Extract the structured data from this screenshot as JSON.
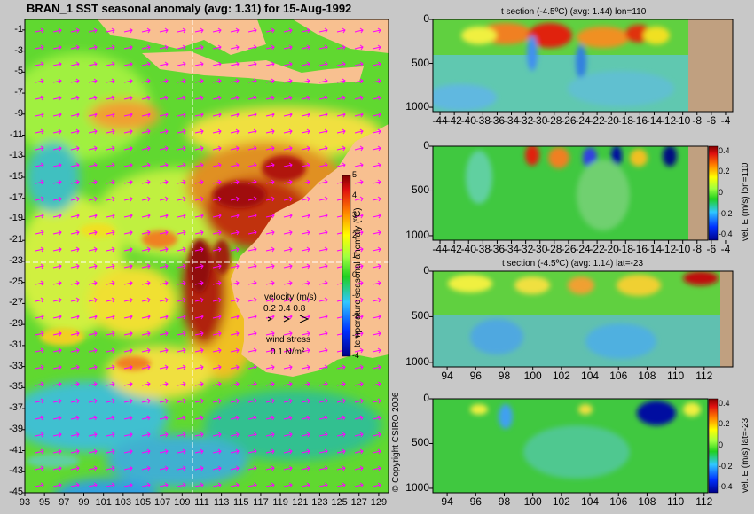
{
  "chart_data": [
    {
      "type": "heatmap",
      "title": "BRAN_1  SST seasonal anomaly (avg: 1.31) for 15-Aug-1992",
      "x_ticks": [
        "93",
        "95",
        "97",
        "99",
        "101",
        "103",
        "105",
        "107",
        "109",
        "111",
        "113",
        "115",
        "117",
        "119",
        "121",
        "123",
        "125",
        "127",
        "129"
      ],
      "y_ticks": [
        "-1",
        "-3",
        "-5",
        "-7",
        "-9",
        "-11",
        "-13",
        "-15",
        "-17",
        "-19",
        "-21",
        "-23",
        "-25",
        "-27",
        "-29",
        "-31",
        "-33",
        "-35",
        "-37",
        "-39",
        "-41",
        "-43",
        "-45"
      ],
      "xlim": [
        93,
        130
      ],
      "ylim": [
        -45,
        0
      ],
      "colorbar": {
        "label": "temperature seasonal anomaly (ºC)",
        "ticks": [
          "5",
          "4",
          "3",
          "2",
          "1",
          "0",
          "-1",
          "-2",
          "-3",
          "-4"
        ],
        "range": [
          -4,
          5
        ]
      },
      "annotations": {
        "velocity_label": "velocity (m/s)",
        "velocity_scale": "0.2 0.4 0.8",
        "wind_label": "wind stress",
        "wind_scale": "0.1 N/m²"
      },
      "crosshair": {
        "lon": 110,
        "lat": -23
      },
      "copyright": "© Copyright CSIRO 2006"
    },
    {
      "type": "heatmap",
      "title": "t section (-4.5ºC) (avg: 1.44) lon=110",
      "x_ticks": [
        "-44",
        "-42",
        "-40",
        "-38",
        "-36",
        "-34",
        "-32",
        "-30",
        "-28",
        "-26",
        "-24",
        "-22",
        "-20",
        "-18",
        "-16",
        "-14",
        "-12",
        "-10",
        "-8",
        "-6",
        "-4"
      ],
      "y_ticks": [
        "0",
        "500",
        "1000"
      ],
      "xlim": [
        -45,
        -3
      ],
      "ylim": [
        1050,
        0
      ]
    },
    {
      "type": "heatmap",
      "title": "",
      "x_ticks": [
        "-44",
        "-42",
        "-40",
        "-38",
        "-36",
        "-34",
        "-32",
        "-30",
        "-28",
        "-26",
        "-24",
        "-22",
        "-20",
        "-18",
        "-16",
        "-14",
        "-12",
        "-10",
        "-8",
        "-6",
        "-4"
      ],
      "y_ticks": [
        "0",
        "500",
        "1000"
      ],
      "xlim": [
        -45,
        -3
      ],
      "ylim": [
        1050,
        0
      ],
      "colorbar": {
        "label": "vel. E (m/s) lon=110",
        "ticks": [
          "0.4",
          "0.2",
          "0",
          "-0.2",
          "-0.4"
        ],
        "range": [
          -0.45,
          0.45
        ]
      }
    },
    {
      "type": "heatmap",
      "title": "t section (-4.5ºC) (avg: 1.14) lat=-23",
      "x_ticks": [
        "94",
        "96",
        "98",
        "100",
        "102",
        "104",
        "106",
        "108",
        "110",
        "112"
      ],
      "y_ticks": [
        "0",
        "500",
        "1000"
      ],
      "xlim": [
        93,
        114
      ],
      "ylim": [
        1050,
        0
      ]
    },
    {
      "type": "heatmap",
      "title": "",
      "x_ticks": [
        "94",
        "96",
        "98",
        "100",
        "102",
        "104",
        "106",
        "108",
        "110",
        "112"
      ],
      "y_ticks": [
        "0",
        "500",
        "1000"
      ],
      "xlim": [
        93,
        114
      ],
      "ylim": [
        1050,
        0
      ],
      "colorbar": {
        "label": "vel. E (m/s) lat=-23",
        "ticks": [
          "0.4",
          "0.2",
          "0",
          "-0.2",
          "-0.4"
        ],
        "range": [
          -0.45,
          0.45
        ]
      }
    }
  ],
  "colors": {
    "land": "#f8c090",
    "seafloor": "#c0a080",
    "background": "#c8c8c8",
    "arrow": "#ff00ff"
  }
}
